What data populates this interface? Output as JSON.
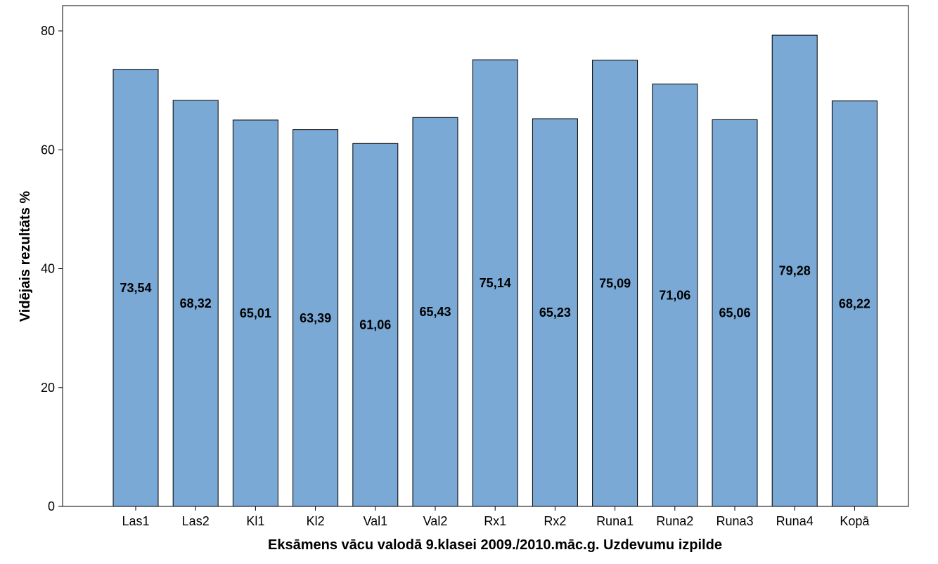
{
  "chart_data": {
    "type": "bar",
    "categories": [
      "Las1",
      "Las2",
      "Kl1",
      "Kl2",
      "Val1",
      "Val2",
      "Rx1",
      "Rx2",
      "Runa1",
      "Runa2",
      "Runa3",
      "Runa4",
      "Kopā"
    ],
    "values": [
      73.54,
      68.32,
      65.01,
      63.39,
      61.06,
      65.43,
      75.14,
      65.23,
      75.09,
      71.06,
      65.06,
      79.28,
      68.22
    ],
    "data_labels": [
      "73,54",
      "68,32",
      "65,01",
      "63,39",
      "61,06",
      "65,43",
      "75,14",
      "65,23",
      "75,09",
      "71,06",
      "65,06",
      "79,28",
      "68,22"
    ],
    "title": "",
    "xlabel": "Eksāmens vācu valodā 9.klasei 2009./2010.māc.g. Uzdevumu izpilde",
    "ylabel": "Vidējais rezultāts %",
    "ylim": [
      0,
      84
    ],
    "yticks": [
      0,
      20,
      40,
      60,
      80
    ],
    "grid": false,
    "legend": "none",
    "bar_color": "#7aa9d6",
    "bar_edge_color": "#000000"
  }
}
